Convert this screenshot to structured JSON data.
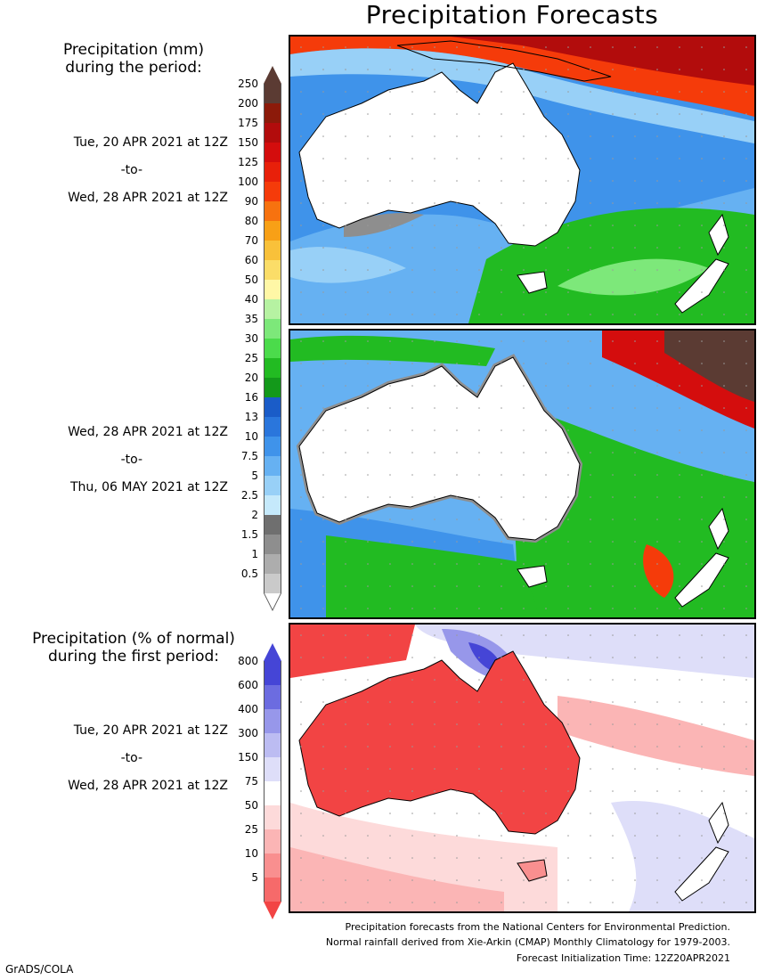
{
  "title": "Precipitation Forecasts",
  "mm_legend": {
    "title_line1": "Precipitation (mm)",
    "title_line2": "during the period:",
    "levels": [
      "250",
      "200",
      "175",
      "150",
      "125",
      "100",
      "90",
      "80",
      "70",
      "60",
      "50",
      "40",
      "35",
      "30",
      "25",
      "20",
      "16",
      "13",
      "10",
      "7.5",
      "5",
      "2.5",
      "2",
      "1.5",
      "1",
      "0.5"
    ],
    "colors": [
      "#5b3b33",
      "#8c1a0a",
      "#b20c0c",
      "#d40d0d",
      "#e8200a",
      "#f53b0a",
      "#f7720f",
      "#f8a016",
      "#f9c13a",
      "#fbdd68",
      "#fff7a6",
      "#b6f2a2",
      "#7de87a",
      "#4bdb4b",
      "#22bb22",
      "#13991a",
      "#1a5cc8",
      "#2a76dc",
      "#3f93ea",
      "#66b1f2",
      "#98d0f7",
      "#c5e9fb",
      "#6f6f6f",
      "#8e8e8e",
      "#adadad",
      "#cacaca"
    ],
    "top_color": "#5b3b33",
    "bottom_color": "#ffffff"
  },
  "period1": {
    "line1": "Tue, 20 APR 2021 at 12Z",
    "line2": "-to-",
    "line3": "Wed, 28 APR 2021 at 12Z"
  },
  "period2": {
    "line1": "Wed, 28 APR 2021 at 12Z",
    "line2": "-to-",
    "line3": "Thu, 06 MAY 2021 at 12Z"
  },
  "pct_legend": {
    "title_line1": "Precipitation (% of normal)",
    "title_line2": "during the first period:",
    "levels": [
      "800",
      "600",
      "400",
      "300",
      "150",
      "75",
      "50",
      "25",
      "10",
      "5"
    ],
    "colors": [
      "#4545d6",
      "#6c6ce0",
      "#9797ea",
      "#bcbcf2",
      "#dedef9",
      "#ffffff",
      "#fddada",
      "#fbb5b5",
      "#f98f8f",
      "#f66a6a"
    ],
    "top_color": "#4545d6",
    "bottom_color": "#f24444"
  },
  "period3": {
    "line1": "Tue, 20 APR 2021 at 12Z",
    "line2": "-to-",
    "line3": "Wed, 28 APR 2021 at 12Z"
  },
  "footer": {
    "line1": "Precipitation forecasts from the National Centers for Environmental Prediction.",
    "line2": "Normal rainfall derived from Xie-Arkin (CMAP) Monthly Climatology for 1979-2003.",
    "line3": "Forecast Initialization Time: 12Z20APR2021"
  },
  "credit": "GrADS/COLA",
  "colors": {
    "ocean_blue": "#3f93ea",
    "light_blue": "#98d0f7",
    "green": "#22bb22",
    "red_pct": "#f24444",
    "land": "#ffffff"
  }
}
